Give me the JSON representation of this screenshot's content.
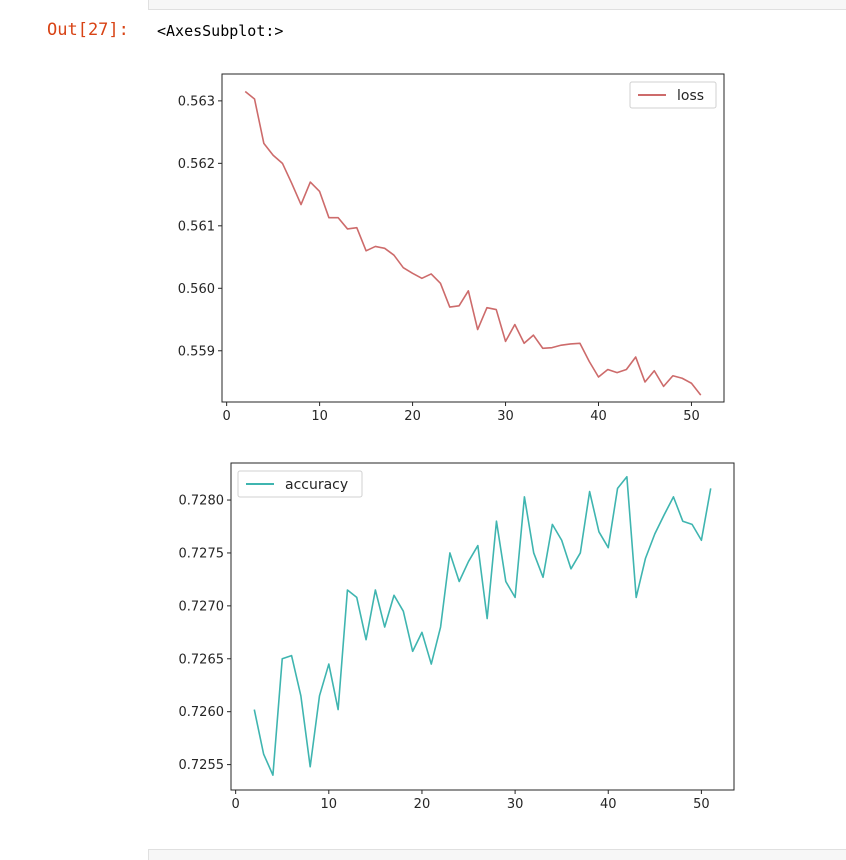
{
  "notebook": {
    "prompt": "Out[27]:",
    "output_text": "<AxesSubplot:>"
  },
  "chart_data": [
    {
      "type": "line",
      "series": [
        {
          "name": "loss",
          "color": "#cd6b6b",
          "x": [
            2,
            3,
            4,
            5,
            6,
            7,
            8,
            9,
            10,
            11,
            12,
            13,
            14,
            15,
            16,
            17,
            18,
            19,
            20,
            21,
            22,
            23,
            24,
            25,
            26,
            27,
            28,
            29,
            30,
            31,
            32,
            33,
            34,
            35,
            36,
            37,
            38,
            39,
            40,
            41,
            42,
            43,
            44,
            45,
            46,
            47,
            48,
            49,
            50,
            51
          ],
          "y": [
            0.56315,
            0.56303,
            0.56232,
            0.56213,
            0.562,
            0.56168,
            0.56134,
            0.5617,
            0.56155,
            0.56113,
            0.56113,
            0.56095,
            0.56097,
            0.5606,
            0.56067,
            0.56064,
            0.56053,
            0.56033,
            0.56024,
            0.56016,
            0.56023,
            0.56008,
            0.5597,
            0.55972,
            0.55996,
            0.55934,
            0.55969,
            0.55966,
            0.55915,
            0.55942,
            0.55912,
            0.55925,
            0.55904,
            0.55905,
            0.55909,
            0.55911,
            0.55912,
            0.55883,
            0.55858,
            0.5587,
            0.55865,
            0.5587,
            0.5589,
            0.5585,
            0.55868,
            0.55843,
            0.5586,
            0.55856,
            0.55848,
            0.55829
          ]
        }
      ],
      "xticks": [
        0,
        10,
        20,
        30,
        40,
        50
      ],
      "yticks": [
        0.559,
        0.56,
        0.561,
        0.562,
        0.563
      ],
      "ytick_labels": [
        "0.559",
        "0.560",
        "0.561",
        "0.562",
        "0.563"
      ],
      "xlim": [
        -0.5,
        53.5
      ],
      "ylim": [
        0.55818,
        0.56343
      ],
      "legend": "top-right"
    },
    {
      "type": "line",
      "series": [
        {
          "name": "accuracy",
          "color": "#3fb5b0",
          "x": [
            2,
            3,
            4,
            5,
            6,
            7,
            8,
            9,
            10,
            11,
            12,
            13,
            14,
            15,
            16,
            17,
            18,
            19,
            20,
            21,
            22,
            23,
            24,
            25,
            26,
            27,
            28,
            29,
            30,
            31,
            32,
            33,
            34,
            35,
            36,
            37,
            38,
            39,
            40,
            41,
            42,
            43,
            44,
            45,
            46,
            47,
            48,
            49,
            50,
            51
          ],
          "y": [
            0.72602,
            0.7256,
            0.7254,
            0.7265,
            0.72653,
            0.72615,
            0.72548,
            0.72615,
            0.72645,
            0.72602,
            0.72715,
            0.72708,
            0.72668,
            0.72715,
            0.7268,
            0.7271,
            0.72695,
            0.72657,
            0.72675,
            0.72645,
            0.7268,
            0.7275,
            0.72723,
            0.72742,
            0.72757,
            0.72688,
            0.7278,
            0.72723,
            0.72708,
            0.72803,
            0.7275,
            0.72727,
            0.72777,
            0.72762,
            0.72735,
            0.7275,
            0.72808,
            0.7277,
            0.72755,
            0.72811,
            0.72822,
            0.72708,
            0.72745,
            0.72768,
            0.72786,
            0.72803,
            0.7278,
            0.72777,
            0.72762,
            0.72811
          ]
        }
      ],
      "xticks": [
        0,
        10,
        20,
        30,
        40,
        50
      ],
      "yticks": [
        0.7255,
        0.726,
        0.7265,
        0.727,
        0.7275,
        0.728
      ],
      "ytick_labels": [
        "0.7255",
        "0.7260",
        "0.7265",
        "0.7270",
        "0.7275",
        "0.7280"
      ],
      "xlim": [
        -0.5,
        53.5
      ],
      "ylim": [
        0.72526,
        0.72835
      ],
      "legend": "top-left"
    }
  ]
}
